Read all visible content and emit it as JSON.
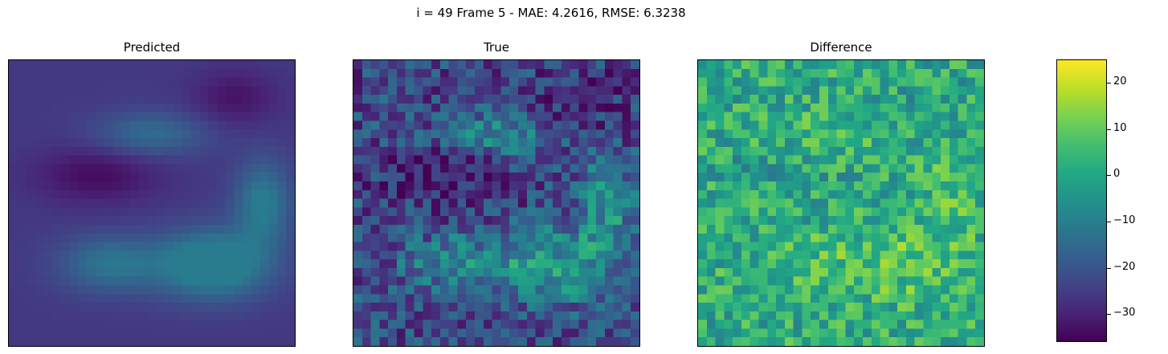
{
  "figure": {
    "suptitle": "i = 49 Frame 5 - MAE: 4.2616, RMSE: 6.3238"
  },
  "panels": [
    {
      "title": "Predicted"
    },
    {
      "title": "True"
    },
    {
      "title": "Difference"
    }
  ],
  "chart_data": {
    "type": "heatmap",
    "colormap": "viridis",
    "grid_size": [
      33,
      33
    ],
    "panels": [
      "Predicted",
      "True",
      "Difference"
    ],
    "color_range": [
      -36,
      25
    ],
    "colorbar": {
      "ticks": [
        -30,
        -20,
        -10,
        0,
        10,
        20
      ],
      "tick_labels": [
        "−30",
        "−20",
        "−10",
        "0",
        "10",
        "20"
      ]
    },
    "axes_ticks": "none",
    "colors": {
      "low": "#440154",
      "mid": "#21918c",
      "high": "#fde725"
    }
  }
}
